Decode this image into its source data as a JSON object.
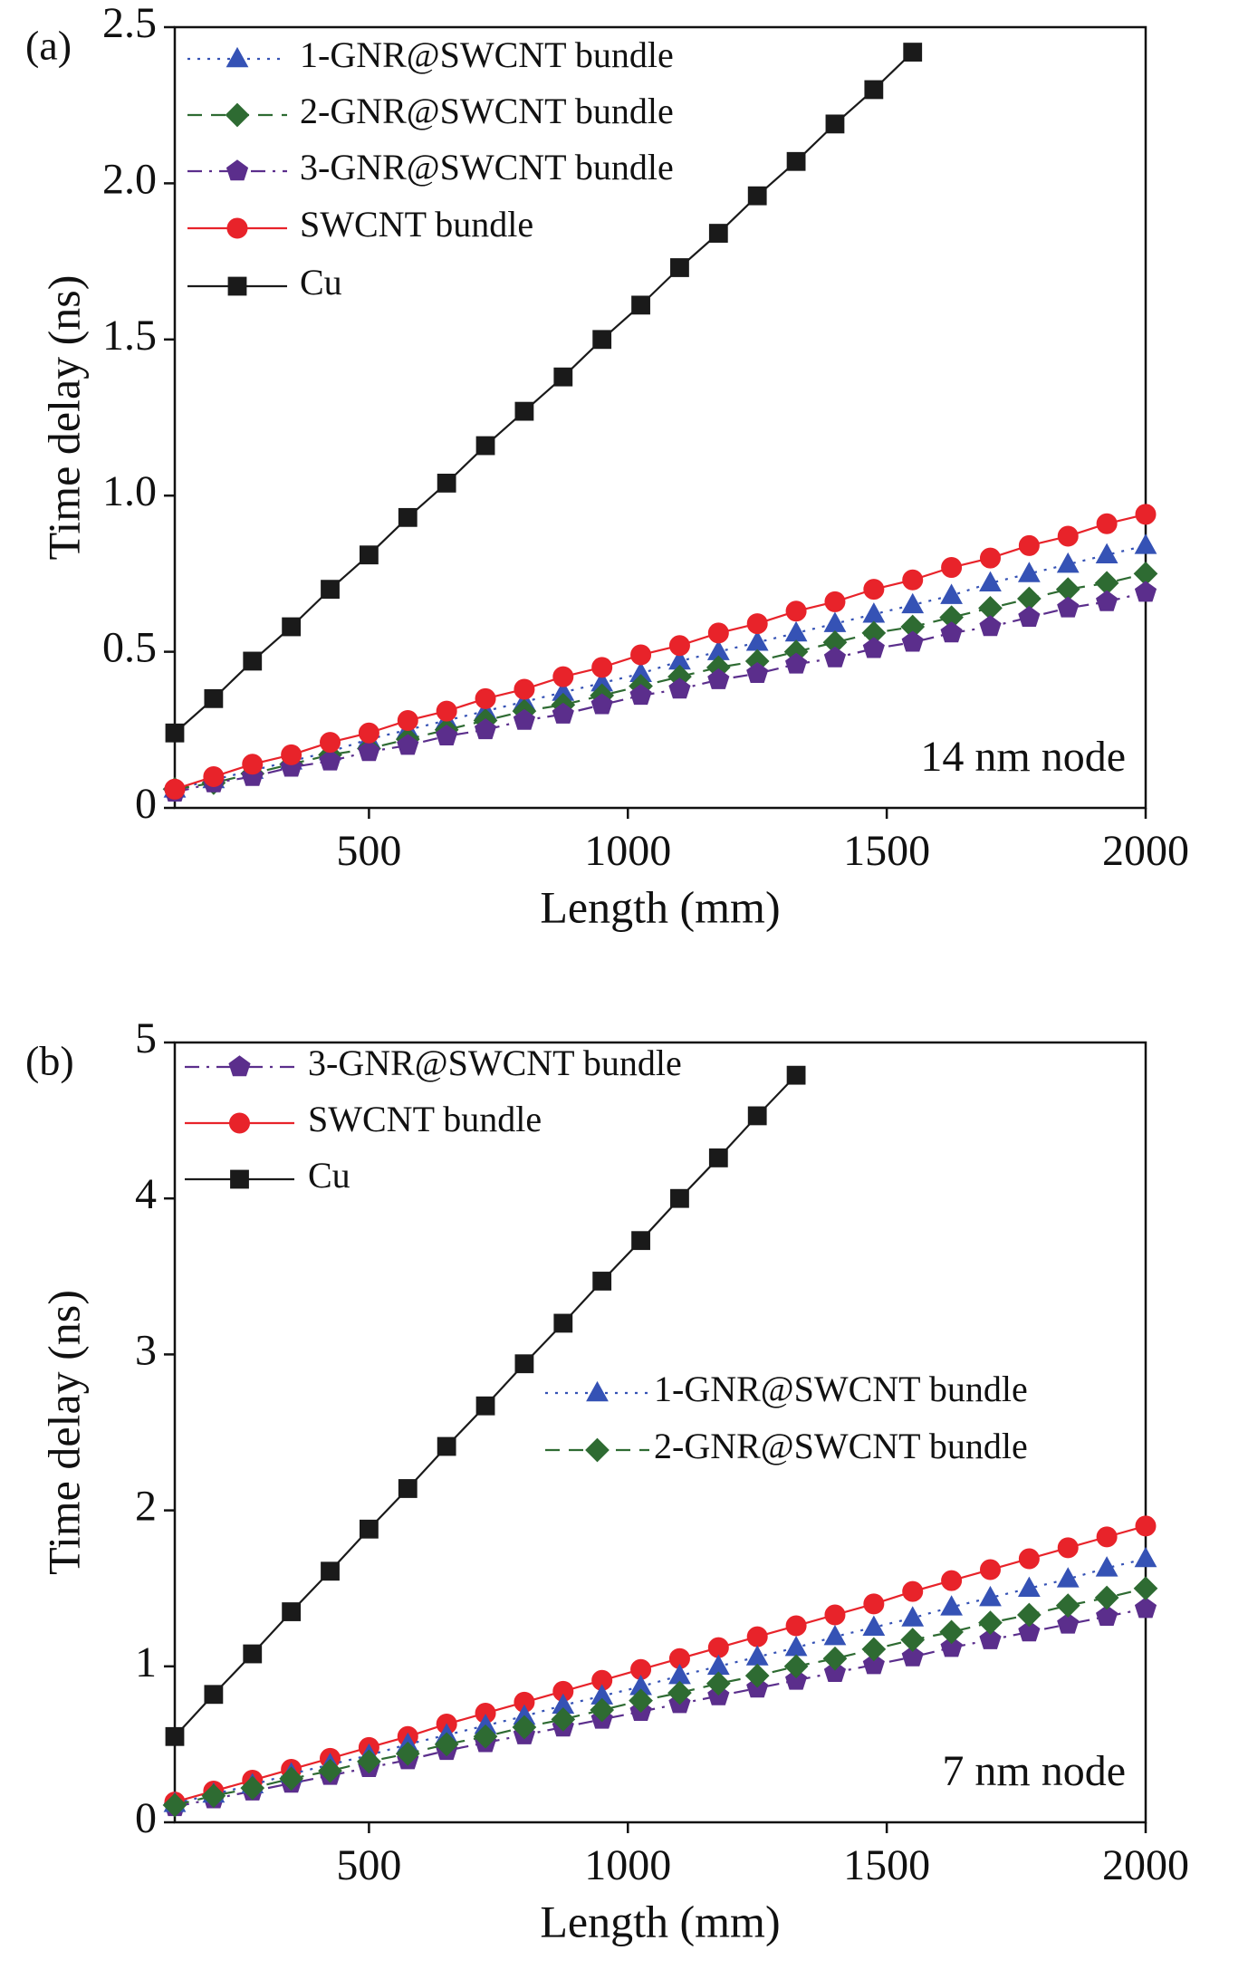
{
  "chart_data": [
    {
      "type": "line",
      "title": "(a)",
      "annotation": "14 nm node",
      "xlabel": "Length (mm)",
      "ylabel": "Time delay (ns)",
      "x": [
        125,
        200,
        275,
        350,
        425,
        500,
        575,
        650,
        725,
        800,
        875,
        950,
        1025,
        1100,
        1175,
        1250,
        1325,
        1400,
        1475,
        1550,
        1625,
        1700,
        1775,
        1850,
        1925,
        2000
      ],
      "xlim": [
        125,
        2000
      ],
      "xticks": [
        500,
        1000,
        1500,
        2000
      ],
      "ylim": [
        0,
        2.5
      ],
      "yticks": [
        0,
        0.5,
        {
          "value": 1,
          "label": "1.0"
        },
        1.5,
        {
          "value": 2,
          "label": "2.0"
        },
        2.5
      ],
      "legend": "upper left",
      "series": [
        {
          "name": "1-GNR@SWCNT bundle",
          "color": "#3552b5",
          "marker": "triangle",
          "dash": "dotted",
          "values": [
            0.06,
            0.09,
            0.12,
            0.15,
            0.18,
            0.22,
            0.25,
            0.28,
            0.31,
            0.34,
            0.37,
            0.4,
            0.43,
            0.47,
            0.5,
            0.53,
            0.56,
            0.59,
            0.62,
            0.65,
            0.68,
            0.72,
            0.75,
            0.78,
            0.81,
            0.84
          ]
        },
        {
          "name": "2-GNR@SWCNT bundle",
          "color": "#2e6b32",
          "marker": "diamond",
          "dash": "dashed",
          "values": [
            0.06,
            0.08,
            0.11,
            0.14,
            0.17,
            0.19,
            0.22,
            0.25,
            0.28,
            0.31,
            0.33,
            0.36,
            0.39,
            0.42,
            0.45,
            0.47,
            0.5,
            0.53,
            0.56,
            0.58,
            0.61,
            0.64,
            0.67,
            0.7,
            0.72,
            0.75
          ]
        },
        {
          "name": "3-GNR@SWCNT bundle",
          "color": "#5b2e8c",
          "marker": "pentagon",
          "dash": "dashdot",
          "values": [
            0.05,
            0.08,
            0.1,
            0.13,
            0.15,
            0.18,
            0.2,
            0.23,
            0.25,
            0.28,
            0.3,
            0.33,
            0.36,
            0.38,
            0.41,
            0.43,
            0.46,
            0.48,
            0.51,
            0.53,
            0.56,
            0.58,
            0.61,
            0.64,
            0.66,
            0.69
          ]
        },
        {
          "name": "SWCNT bundle",
          "color": "#e8232a",
          "marker": "circle",
          "dash": "solid",
          "values": [
            0.06,
            0.1,
            0.14,
            0.17,
            0.21,
            0.24,
            0.28,
            0.31,
            0.35,
            0.38,
            0.42,
            0.45,
            0.49,
            0.52,
            0.56,
            0.59,
            0.63,
            0.66,
            0.7,
            0.73,
            0.77,
            0.8,
            0.84,
            0.87,
            0.91,
            0.94
          ]
        },
        {
          "name": "Cu",
          "color": "#1a1a1a",
          "marker": "square",
          "dash": "solid",
          "values": [
            0.24,
            0.35,
            0.47,
            0.58,
            0.7,
            0.81,
            0.93,
            1.04,
            1.16,
            1.27,
            1.38,
            1.5,
            1.61,
            1.73,
            1.84,
            1.96,
            2.07,
            2.19,
            2.3,
            2.42,
            null,
            null,
            null,
            null,
            null,
            null
          ]
        }
      ]
    },
    {
      "type": "line",
      "title": "(b)",
      "annotation": "7 nm node",
      "xlabel": "Length (mm)",
      "ylabel": "Time delay (ns)",
      "x": [
        125,
        200,
        275,
        350,
        425,
        500,
        575,
        650,
        725,
        800,
        875,
        950,
        1025,
        1100,
        1175,
        1250,
        1325,
        1400,
        1475,
        1550,
        1625,
        1700,
        1775,
        1850,
        1925,
        2000
      ],
      "xlim": [
        125,
        2000
      ],
      "xticks": [
        500,
        1000,
        1500,
        2000
      ],
      "ylim": [
        0,
        5
      ],
      "yticks": [
        0,
        1,
        2,
        3,
        4,
        5
      ],
      "legend": "upper left",
      "series": [
        {
          "name": "3-GNR@SWCNT bundle",
          "color": "#5b2e8c",
          "marker": "pentagon",
          "dash": "dashdot",
          "values": [
            0.1,
            0.15,
            0.2,
            0.25,
            0.3,
            0.35,
            0.4,
            0.46,
            0.51,
            0.56,
            0.61,
            0.66,
            0.71,
            0.76,
            0.81,
            0.86,
            0.91,
            0.96,
            1.01,
            1.06,
            1.12,
            1.17,
            1.22,
            1.27,
            1.32,
            1.37
          ]
        },
        {
          "name": "SWCNT bundle",
          "color": "#e8232a",
          "marker": "circle",
          "dash": "solid",
          "values": [
            0.13,
            0.2,
            0.27,
            0.34,
            0.41,
            0.48,
            0.55,
            0.63,
            0.7,
            0.77,
            0.84,
            0.91,
            0.98,
            1.05,
            1.12,
            1.19,
            1.26,
            1.33,
            1.4,
            1.48,
            1.55,
            1.62,
            1.69,
            1.76,
            1.83,
            1.9
          ]
        },
        {
          "name": "Cu",
          "color": "#1a1a1a",
          "marker": "square",
          "dash": "solid",
          "values": [
            0.55,
            0.82,
            1.08,
            1.35,
            1.61,
            1.88,
            2.14,
            2.41,
            2.67,
            2.94,
            3.2,
            3.47,
            3.73,
            4.0,
            4.26,
            4.53,
            4.79,
            null,
            null,
            null,
            null,
            null,
            null,
            null,
            null,
            null
          ]
        },
        {
          "name": "1-GNR@SWCNT bundle",
          "color": "#3552b5",
          "marker": "triangle",
          "dash": "dotted",
          "values": [
            0.12,
            0.18,
            0.24,
            0.31,
            0.37,
            0.43,
            0.5,
            0.56,
            0.62,
            0.68,
            0.75,
            0.81,
            0.87,
            0.94,
            1.0,
            1.06,
            1.12,
            1.19,
            1.25,
            1.31,
            1.38,
            1.44,
            1.5,
            1.56,
            1.63,
            1.69
          ]
        },
        {
          "name": "2-GNR@SWCNT bundle",
          "color": "#2e6b32",
          "marker": "diamond",
          "dash": "dashed",
          "values": [
            0.11,
            0.17,
            0.22,
            0.28,
            0.33,
            0.39,
            0.44,
            0.5,
            0.55,
            0.61,
            0.66,
            0.72,
            0.78,
            0.83,
            0.89,
            0.94,
            1.0,
            1.05,
            1.11,
            1.17,
            1.22,
            1.28,
            1.33,
            1.39,
            1.44,
            1.5
          ]
        }
      ]
    }
  ]
}
